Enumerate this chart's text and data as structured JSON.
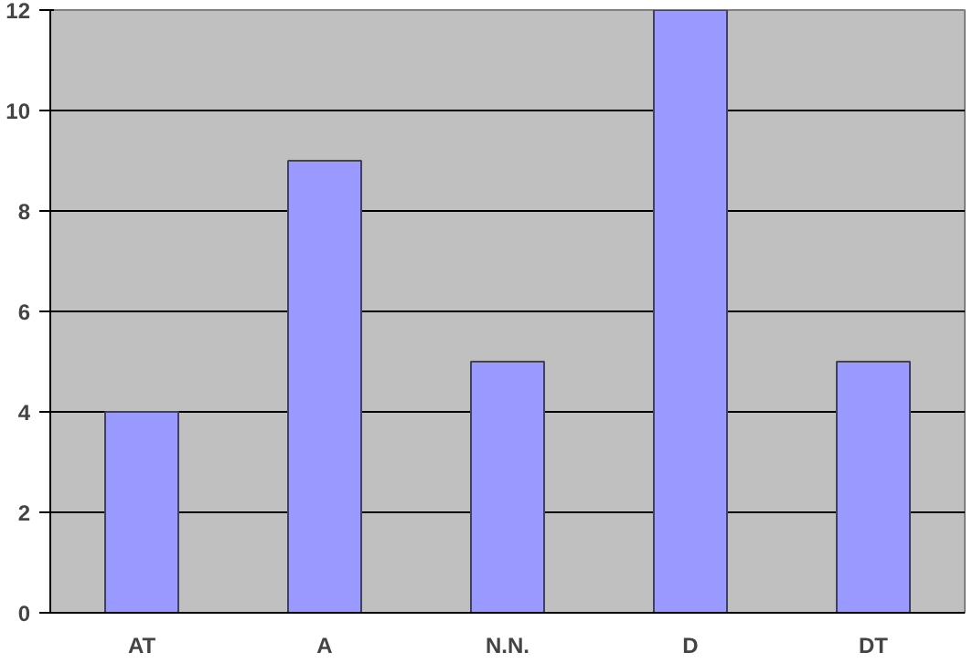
{
  "chart_data": {
    "type": "bar",
    "categories": [
      "AT",
      "A",
      "N.N.",
      "D",
      "DT"
    ],
    "values": [
      4,
      9,
      5,
      12,
      5
    ],
    "color": "#9999ff",
    "ylim": [
      0,
      12
    ],
    "yticks": [
      0,
      2,
      4,
      6,
      8,
      10,
      12
    ],
    "grid": "y"
  }
}
